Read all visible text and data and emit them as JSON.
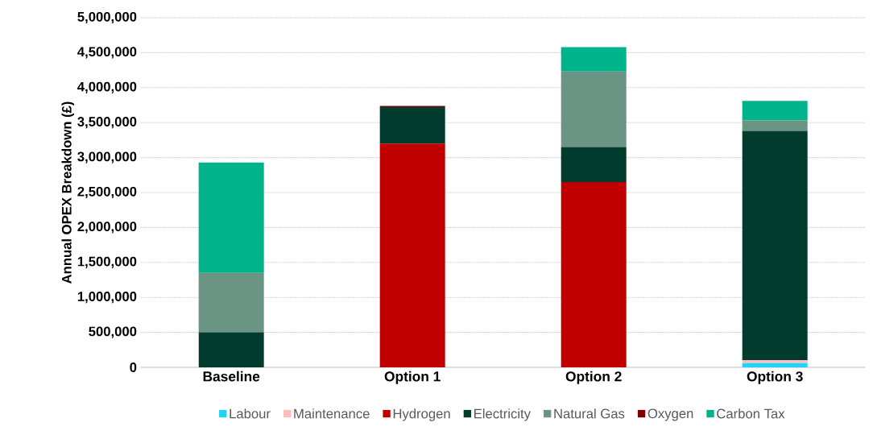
{
  "chart_data": {
    "type": "bar",
    "stacked": true,
    "ylabel": "Annual OPEX Breakdown (£)",
    "categories": [
      "Baseline",
      "Option 1",
      "Option 2",
      "Option 3"
    ],
    "series": [
      {
        "name": "Labour",
        "color": "#1ed4f7",
        "values": [
          0,
          0,
          0,
          60000
        ]
      },
      {
        "name": "Maintenance",
        "color": "#ffbcbc",
        "values": [
          0,
          0,
          0,
          40000
        ]
      },
      {
        "name": "Hydrogen",
        "color": "#c00000",
        "values": [
          0,
          3200000,
          2650000,
          0
        ]
      },
      {
        "name": "Electricity",
        "color": "#003b2e",
        "values": [
          500000,
          520000,
          500000,
          3280000
        ]
      },
      {
        "name": "Natural Gas",
        "color": "#6a9484",
        "values": [
          850000,
          0,
          1080000,
          150000
        ]
      },
      {
        "name": "Oxygen",
        "color": "#7b0000",
        "values": [
          0,
          20000,
          0,
          0
        ]
      },
      {
        "name": "Carbon Tax",
        "color": "#00b38a",
        "values": [
          1580000,
          0,
          350000,
          280000
        ]
      }
    ],
    "ylim": [
      0,
      5000000
    ],
    "yticks": [
      {
        "value": 0,
        "label": "0"
      },
      {
        "value": 500000,
        "label": "500,000"
      },
      {
        "value": 1000000,
        "label": "1,000,000"
      },
      {
        "value": 1500000,
        "label": "1,500,000"
      },
      {
        "value": 2000000,
        "label": "2,000,000"
      },
      {
        "value": 2500000,
        "label": "2,500,000"
      },
      {
        "value": 3000000,
        "label": "3,000,000"
      },
      {
        "value": 3500000,
        "label": "3,500,000"
      },
      {
        "value": 4000000,
        "label": "4,000,000"
      },
      {
        "value": 4500000,
        "label": "4,500,000"
      },
      {
        "value": 5000000,
        "label": "5,000,000"
      }
    ],
    "grid": "y",
    "legend": "bottom"
  }
}
